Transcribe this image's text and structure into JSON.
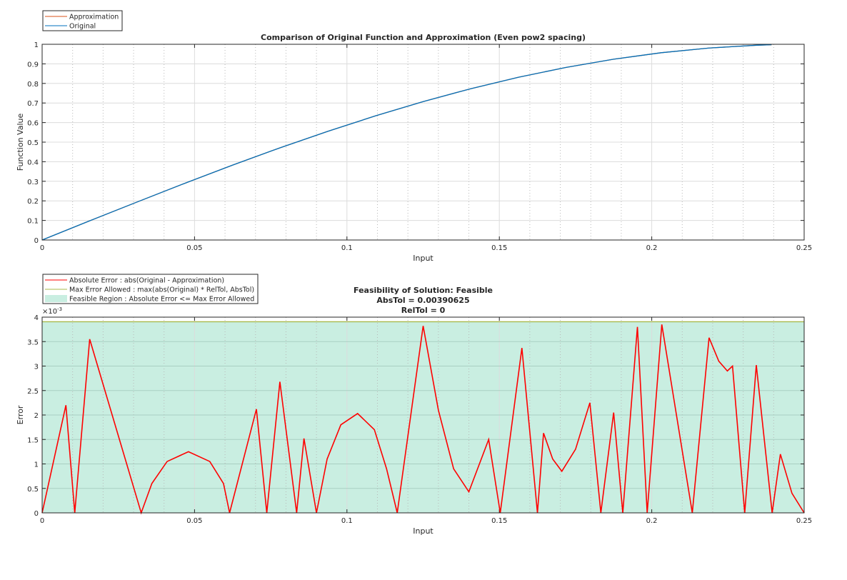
{
  "chart_data": [
    {
      "type": "line",
      "title": "Comparison of Original Function and Approximation (Even pow2 spacing)",
      "xlabel": "Input",
      "ylabel": "Function Value",
      "xlim": [
        0,
        0.25
      ],
      "ylim": [
        0,
        1
      ],
      "xticks": [
        "0",
        "0.05",
        "0.1",
        "0.15",
        "0.2",
        "0.25"
      ],
      "yticks": [
        "0",
        "0.1",
        "0.2",
        "0.3",
        "0.4",
        "0.5",
        "0.6",
        "0.7",
        "0.8",
        "0.9",
        "1"
      ],
      "grid": true,
      "legend_placement": "top-left-outside",
      "series": [
        {
          "name": "Approximation",
          "color": "#d95319",
          "x": [
            0,
            0.0156,
            0.0313,
            0.0469,
            0.0625,
            0.0781,
            0.0938,
            0.1094,
            0.125,
            0.1406,
            0.1563,
            0.1719,
            0.1875,
            0.2031,
            0.2188,
            0.2344,
            0.2393
          ],
          "y": [
            0,
            0.098,
            0.1951,
            0.2903,
            0.3827,
            0.4714,
            0.5556,
            0.6344,
            0.7071,
            0.773,
            0.8315,
            0.8819,
            0.9239,
            0.9569,
            0.9808,
            0.9952,
            0.9976
          ]
        },
        {
          "name": "Original",
          "color": "#0072bd",
          "x": [
            0,
            0.0156,
            0.0313,
            0.0469,
            0.0625,
            0.0781,
            0.0938,
            0.1094,
            0.125,
            0.1406,
            0.1563,
            0.1719,
            0.1875,
            0.2031,
            0.2188,
            0.2344,
            0.2393
          ],
          "y": [
            0,
            0.098,
            0.1951,
            0.2903,
            0.3827,
            0.4714,
            0.5556,
            0.6344,
            0.7071,
            0.773,
            0.8315,
            0.8819,
            0.9239,
            0.9569,
            0.9808,
            0.9952,
            0.9976
          ]
        }
      ]
    },
    {
      "type": "line",
      "title": [
        "Feasibility of Solution: Feasible",
        "AbsTol = 0.00390625",
        "RelTol = 0"
      ],
      "xlabel": "Input",
      "ylabel": "Error",
      "exponent_label": "×10",
      "exponent": "-3",
      "xlim": [
        0,
        0.25
      ],
      "ylim": [
        0,
        0.004
      ],
      "xticks": [
        "0",
        "0.05",
        "0.1",
        "0.15",
        "0.2",
        "0.25"
      ],
      "yticks": [
        "0",
        "0.5",
        "1",
        "1.5",
        "2",
        "2.5",
        "3",
        "3.5",
        "4"
      ],
      "grid": true,
      "legend_placement": "top-left-outside",
      "feasible_region": {
        "name": "Feasible Region : Absolute Error <= Max Error Allowed",
        "color": "#c9eee1",
        "upper": 0.00390625
      },
      "series": [
        {
          "name": "Absolute Error : abs(Original - Approximation)",
          "color": "#ff0000",
          "x": [
            0,
            0.0078,
            0.0107,
            0.0156,
            0.0325,
            0.036,
            0.041,
            0.048,
            0.055,
            0.0595,
            0.0615,
            0.0703,
            0.0737,
            0.078,
            0.0835,
            0.0859,
            0.09,
            0.0935,
            0.098,
            0.1035,
            0.109,
            0.113,
            0.1165,
            0.125,
            0.13,
            0.135,
            0.14,
            0.1465,
            0.1503,
            0.1574,
            0.1625,
            0.1645,
            0.1675,
            0.1705,
            0.175,
            0.1797,
            0.1833,
            0.1875,
            0.1905,
            0.1953,
            0.1985,
            0.2033,
            0.2133,
            0.2188,
            0.222,
            0.2248,
            0.2265,
            0.2305,
            0.2343,
            0.2395,
            0.2422,
            0.246,
            0.25
          ],
          "y": [
            0,
            0.0022,
            0,
            0.00355,
            0,
            0.0006,
            0.00105,
            0.00125,
            0.00105,
            0.0006,
            0,
            0.00212,
            0,
            0.00268,
            0,
            0.00152,
            0,
            0.0011,
            0.0018,
            0.00203,
            0.0017,
            0.0009,
            0,
            0.00382,
            0.0021,
            0.0009,
            0.00043,
            0.0015,
            0,
            0.00337,
            0,
            0.00163,
            0.0011,
            0.00085,
            0.0013,
            0.00225,
            0,
            0.00205,
            0,
            0.0038,
            0,
            0.00385,
            0,
            0.00358,
            0.0031,
            0.0029,
            0.003,
            0,
            0.00302,
            0,
            0.0012,
            0.0004,
            0
          ]
        },
        {
          "name": "Max Error Allowed : max(abs(Original) * RelTol, AbsTol)",
          "color": "#a8b84a",
          "x": [
            0,
            0.25
          ],
          "y": [
            0.00390625,
            0.00390625
          ]
        }
      ]
    }
  ]
}
